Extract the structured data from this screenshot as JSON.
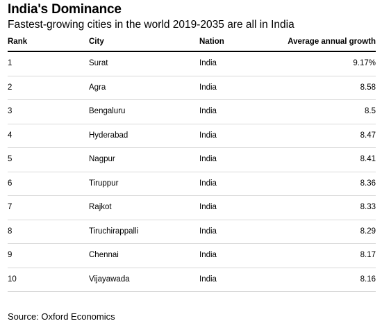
{
  "chart_data": {
    "type": "table",
    "title": "India's Dominance",
    "subtitle": "Fastest-growing cities in the world 2019-2035 are all in India",
    "columns": [
      "Rank",
      "City",
      "Nation",
      "Average annual growth"
    ],
    "rows": [
      {
        "rank": "1",
        "city": "Surat",
        "nation": "India",
        "growth": "9.17%"
      },
      {
        "rank": "2",
        "city": "Agra",
        "nation": "India",
        "growth": "8.58"
      },
      {
        "rank": "3",
        "city": "Bengaluru",
        "nation": "India",
        "growth": "8.5"
      },
      {
        "rank": "4",
        "city": "Hyderabad",
        "nation": "India",
        "growth": "8.47"
      },
      {
        "rank": "5",
        "city": "Nagpur",
        "nation": "India",
        "growth": "8.41"
      },
      {
        "rank": "6",
        "city": "Tiruppur",
        "nation": "India",
        "growth": "8.36"
      },
      {
        "rank": "7",
        "city": "Rajkot",
        "nation": "India",
        "growth": "8.33"
      },
      {
        "rank": "8",
        "city": "Tiruchirappalli",
        "nation": "India",
        "growth": "8.29"
      },
      {
        "rank": "9",
        "city": "Chennai",
        "nation": "India",
        "growth": "8.17"
      },
      {
        "rank": "10",
        "city": "Vijayawada",
        "nation": "India",
        "growth": "8.16"
      }
    ],
    "source": "Source: Oxford Economics"
  }
}
